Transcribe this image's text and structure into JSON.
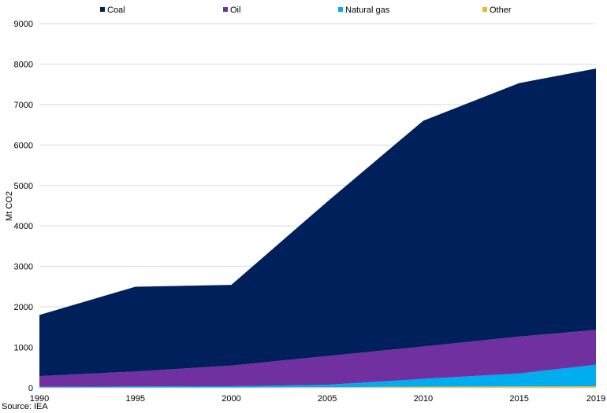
{
  "chart_data": {
    "type": "area",
    "stacked": true,
    "x": [
      1990,
      1995,
      2000,
      2005,
      2010,
      2015,
      2019
    ],
    "x_tick_labels": [
      "1990",
      "1995",
      "2000",
      "2005",
      "2010",
      "2015",
      "2019"
    ],
    "series": [
      {
        "name": "Other",
        "color": "#ecb729",
        "values": [
          5,
          8,
          10,
          15,
          30,
          35,
          40
        ]
      },
      {
        "name": "Natural gas",
        "color": "#00adef",
        "values": [
          20,
          25,
          30,
          60,
          190,
          320,
          530
        ]
      },
      {
        "name": "Oil",
        "color": "#7030a0",
        "values": [
          265,
          370,
          510,
          710,
          800,
          910,
          860
        ]
      },
      {
        "name": "Coal",
        "color": "#00205b",
        "values": [
          1510,
          2095,
          1995,
          3815,
          5580,
          6265,
          6460
        ]
      }
    ],
    "legend_order": [
      "Coal",
      "Oil",
      "Natural gas",
      "Other"
    ],
    "legend_position": "top",
    "ylabel": "Mt CO2",
    "xlabel": "",
    "ylim": [
      0,
      9000
    ],
    "y_ticks": [
      0,
      1000,
      2000,
      3000,
      4000,
      5000,
      6000,
      7000,
      8000,
      9000
    ],
    "grid": {
      "horizontal": true,
      "color": "#d9d9d9"
    }
  },
  "source_note": "Source: IEA"
}
